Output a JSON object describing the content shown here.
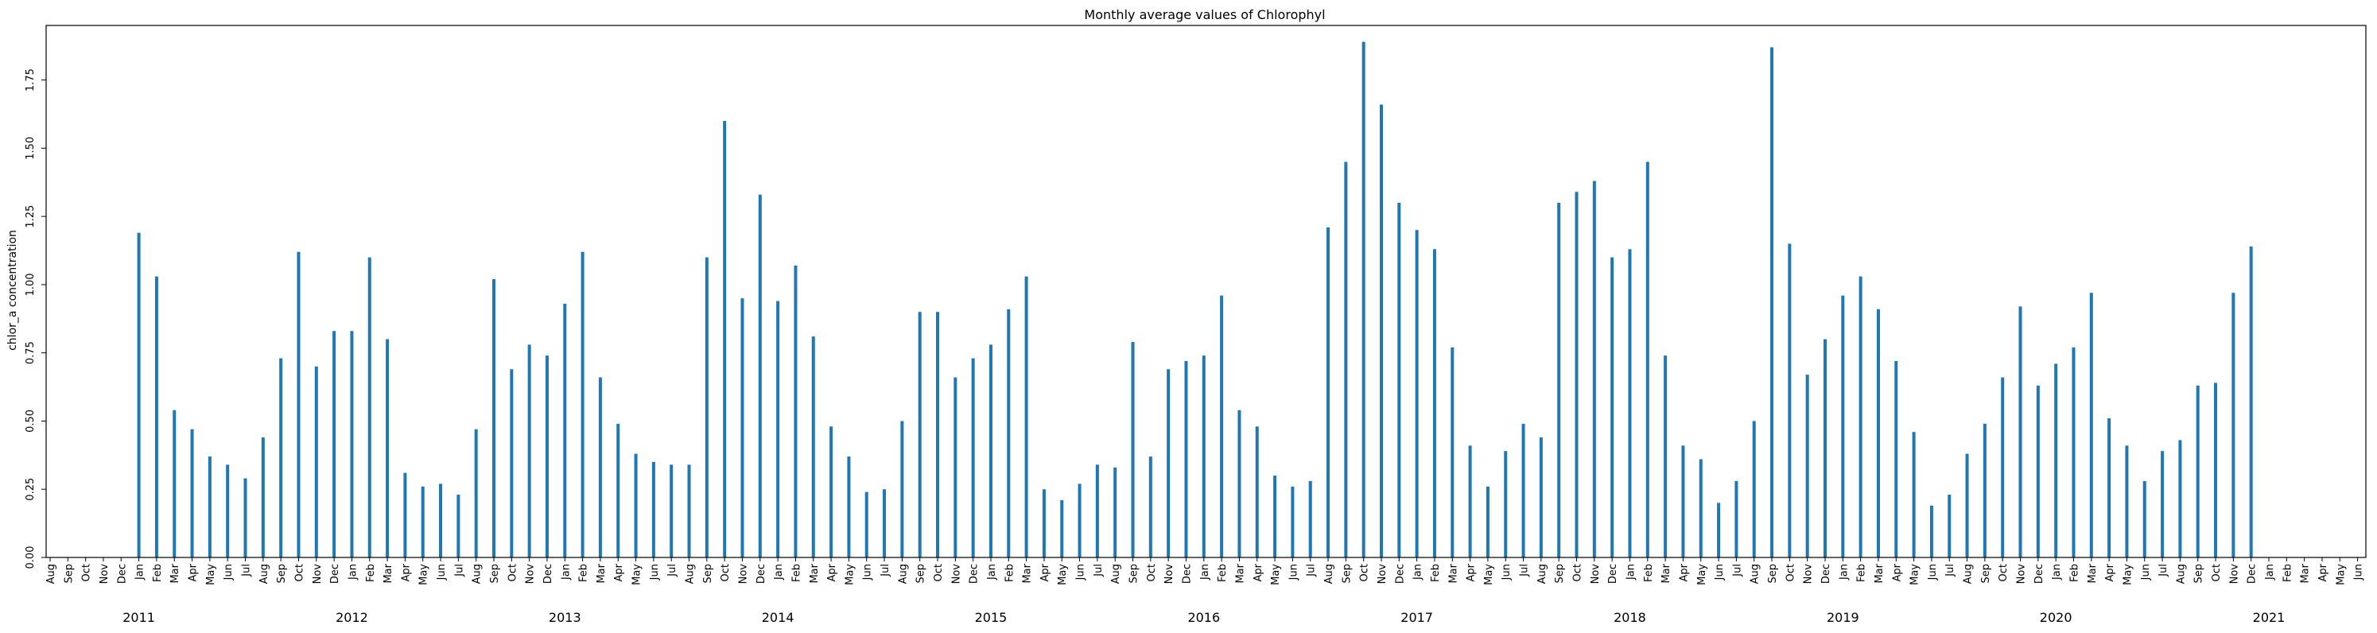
{
  "chart_data": {
    "type": "bar",
    "title": "Monthly average values of Chlorophyl",
    "xlabel": "",
    "ylabel": "chlor_a concentration",
    "ylim": [
      0,
      1.95
    ],
    "yticks": [
      "0.00",
      "0.25",
      "0.50",
      "0.75",
      "1.00",
      "1.25",
      "1.50",
      "1.75"
    ],
    "color": "#1f77b4",
    "grid": false,
    "categories": [
      "Aug",
      "Sep",
      "Oct",
      "Nov",
      "Dec",
      "Jan",
      "Feb",
      "Mar",
      "Apr",
      "May",
      "Jun",
      "Jul",
      "Aug",
      "Sep",
      "Oct",
      "Nov",
      "Dec",
      "Jan",
      "Feb",
      "Mar",
      "Apr",
      "May",
      "Jun",
      "Jul",
      "Aug",
      "Sep",
      "Oct",
      "Nov",
      "Dec",
      "Jan",
      "Feb",
      "Mar",
      "Apr",
      "May",
      "Jun",
      "Jul",
      "Aug",
      "Sep",
      "Oct",
      "Nov",
      "Dec",
      "Jan",
      "Feb",
      "Mar",
      "Apr",
      "May",
      "Jun",
      "Jul",
      "Aug",
      "Sep",
      "Oct",
      "Nov",
      "Dec",
      "Jan",
      "Feb",
      "Mar",
      "Apr",
      "May",
      "Jun",
      "Jul",
      "Aug",
      "Sep",
      "Oct",
      "Nov",
      "Dec",
      "Jan",
      "Feb",
      "Mar",
      "Apr",
      "May",
      "Jun",
      "Jul",
      "Aug",
      "Sep",
      "Oct",
      "Nov",
      "Dec",
      "Jan",
      "Feb",
      "Mar",
      "Apr",
      "May",
      "Jun",
      "Jul",
      "Aug",
      "Sep",
      "Oct",
      "Nov",
      "Dec",
      "Jan",
      "Feb",
      "Mar",
      "Apr",
      "May",
      "Jun",
      "Jul",
      "Aug",
      "Sep",
      "Oct",
      "Nov",
      "Dec",
      "Jan",
      "Feb",
      "Mar",
      "Apr",
      "May",
      "Jun",
      "Jul",
      "Aug",
      "Sep",
      "Oct",
      "Nov",
      "Dec",
      "Jan",
      "Feb",
      "Mar",
      "Apr",
      "May",
      "Jun",
      "Jul",
      "Aug",
      "Sep",
      "Oct",
      "Nov",
      "Dec",
      "Jan",
      "Feb",
      "Mar",
      "Apr",
      "May",
      "Jun"
    ],
    "values": [
      0,
      0,
      0,
      0,
      0,
      1.19,
      1.03,
      0.54,
      0.47,
      0.37,
      0.34,
      0.29,
      0.44,
      0.73,
      1.12,
      0.7,
      0.83,
      0.83,
      1.1,
      0.8,
      0.31,
      0.26,
      0.27,
      0.23,
      0.47,
      1.02,
      0.69,
      0.78,
      0.74,
      0.93,
      1.12,
      0.66,
      0.49,
      0.38,
      0.35,
      0.34,
      0.34,
      1.1,
      1.6,
      0.95,
      1.33,
      0.94,
      1.07,
      0.81,
      0.48,
      0.37,
      0.24,
      0.25,
      0.5,
      0.9,
      0.9,
      0.66,
      0.73,
      0.78,
      0.91,
      1.03,
      0.25,
      0.21,
      0.27,
      0.34,
      0.33,
      0.79,
      0.37,
      0.69,
      0.72,
      0.74,
      0.96,
      0.54,
      0.48,
      0.3,
      0.26,
      0.28,
      1.21,
      1.45,
      1.89,
      1.66,
      1.3,
      1.2,
      1.13,
      0.77,
      0.41,
      0.26,
      0.39,
      0.49,
      0.44,
      1.3,
      1.34,
      1.38,
      1.1,
      1.13,
      1.45,
      0.74,
      0.41,
      0.36,
      0.2,
      0.28,
      0.5,
      1.87,
      1.15,
      0.67,
      0.8,
      0.96,
      1.03,
      0.91,
      0.72,
      0.46,
      0.19,
      0.23,
      0.38,
      0.49,
      0.66,
      0.92,
      0.63,
      0.71,
      0.77,
      0.97,
      0.51,
      0.41,
      0.28,
      0.39,
      0.43,
      0.63,
      0.64,
      0.97,
      1.14,
      0,
      0,
      0,
      0,
      0,
      0
    ],
    "year_labels": [
      {
        "label": "2011",
        "index": 5
      },
      {
        "label": "2012",
        "index": 17
      },
      {
        "label": "2013",
        "index": 29
      },
      {
        "label": "2014",
        "index": 41
      },
      {
        "label": "2015",
        "index": 53
      },
      {
        "label": "2016",
        "index": 65
      },
      {
        "label": "2017",
        "index": 77
      },
      {
        "label": "2018",
        "index": 89
      },
      {
        "label": "2019",
        "index": 101
      },
      {
        "label": "2020",
        "index": 113
      },
      {
        "label": "2021",
        "index": 125
      }
    ]
  }
}
